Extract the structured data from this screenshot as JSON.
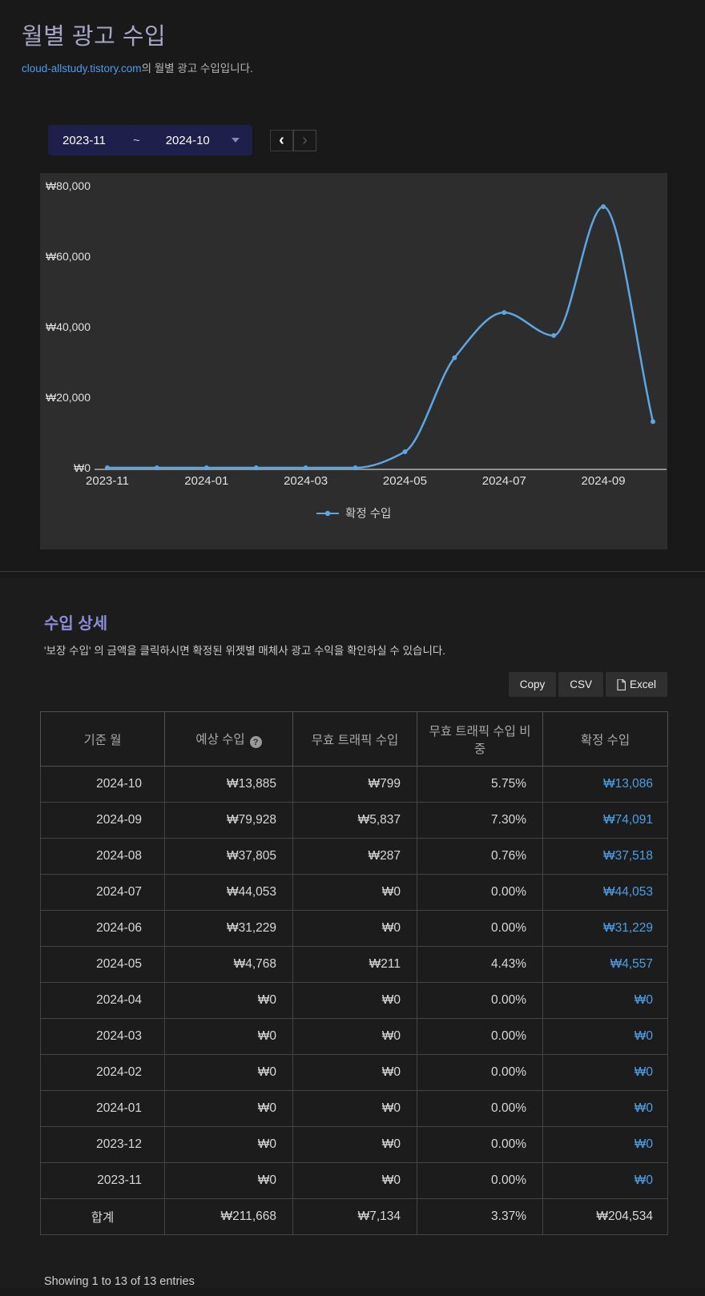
{
  "page": {
    "title": "월별 광고 수입",
    "subtitle_link": "cloud-allstudy.tistory.com",
    "subtitle_rest": "의 월별 광고 수입입니다."
  },
  "toolbar": {
    "date_from": "2023-11",
    "date_separator": "~",
    "date_to": "2024-10",
    "prev_label": "‹",
    "next_label": "›"
  },
  "chart_data": {
    "type": "line",
    "title": "",
    "x": [
      "2023-11",
      "2023-12",
      "2024-01",
      "2024-02",
      "2024-03",
      "2024-04",
      "2024-05",
      "2024-06",
      "2024-07",
      "2024-08",
      "2024-09",
      "2024-10"
    ],
    "series": [
      {
        "name": "확정 수입",
        "values": [
          0,
          0,
          0,
          0,
          0,
          0,
          4557,
          31229,
          44053,
          37518,
          74091,
          13086
        ]
      }
    ],
    "ylim": [
      0,
      80000
    ],
    "yticks": [
      0,
      20000,
      40000,
      60000,
      80000
    ],
    "ytick_labels": [
      "₩0",
      "₩20,000",
      "₩40,000",
      "₩60,000",
      "₩80,000"
    ],
    "xtick_labels": [
      "2023-11",
      "2024-01",
      "2024-03",
      "2024-05",
      "2024-07",
      "2024-09"
    ],
    "legend": [
      "확정 수입"
    ],
    "legend_position": "bottom",
    "grid": false,
    "line_color": "#5ba7e6",
    "axis_color": "#909090",
    "label_color": "#e0e0e0",
    "legend_text_color": "#cfcfcf"
  },
  "details": {
    "heading": "수입 상세",
    "description": "'보장 수입' 의 금액을 클릭하시면 확정된 위젯별 매체사 광고 수익을 확인하실 수 있습니다.",
    "buttons": [
      "Copy",
      "CSV",
      "Excel"
    ]
  },
  "table": {
    "headers": [
      "기준 월",
      "예상 수입",
      "무효 트래픽 수입",
      "무효 트래픽 수입 비중",
      "확정 수입"
    ],
    "rows": [
      [
        "2024-10",
        "₩13,885",
        "₩799",
        "5.75%",
        "₩13,086"
      ],
      [
        "2024-09",
        "₩79,928",
        "₩5,837",
        "7.30%",
        "₩74,091"
      ],
      [
        "2024-08",
        "₩37,805",
        "₩287",
        "0.76%",
        "₩37,518"
      ],
      [
        "2024-07",
        "₩44,053",
        "₩0",
        "0.00%",
        "₩44,053"
      ],
      [
        "2024-06",
        "₩31,229",
        "₩0",
        "0.00%",
        "₩31,229"
      ],
      [
        "2024-05",
        "₩4,768",
        "₩211",
        "4.43%",
        "₩4,557"
      ],
      [
        "2024-04",
        "₩0",
        "₩0",
        "0.00%",
        "₩0"
      ],
      [
        "2024-03",
        "₩0",
        "₩0",
        "0.00%",
        "₩0"
      ],
      [
        "2024-02",
        "₩0",
        "₩0",
        "0.00%",
        "₩0"
      ],
      [
        "2024-01",
        "₩0",
        "₩0",
        "0.00%",
        "₩0"
      ],
      [
        "2023-12",
        "₩0",
        "₩0",
        "0.00%",
        "₩0"
      ],
      [
        "2023-11",
        "₩0",
        "₩0",
        "0.00%",
        "₩0"
      ]
    ],
    "total_row": [
      "합계",
      "₩211,668",
      "₩7,134",
      "3.37%",
      "₩204,534"
    ]
  },
  "footer": {
    "showing_text": "Showing 1 to 13 of 13 entries"
  }
}
